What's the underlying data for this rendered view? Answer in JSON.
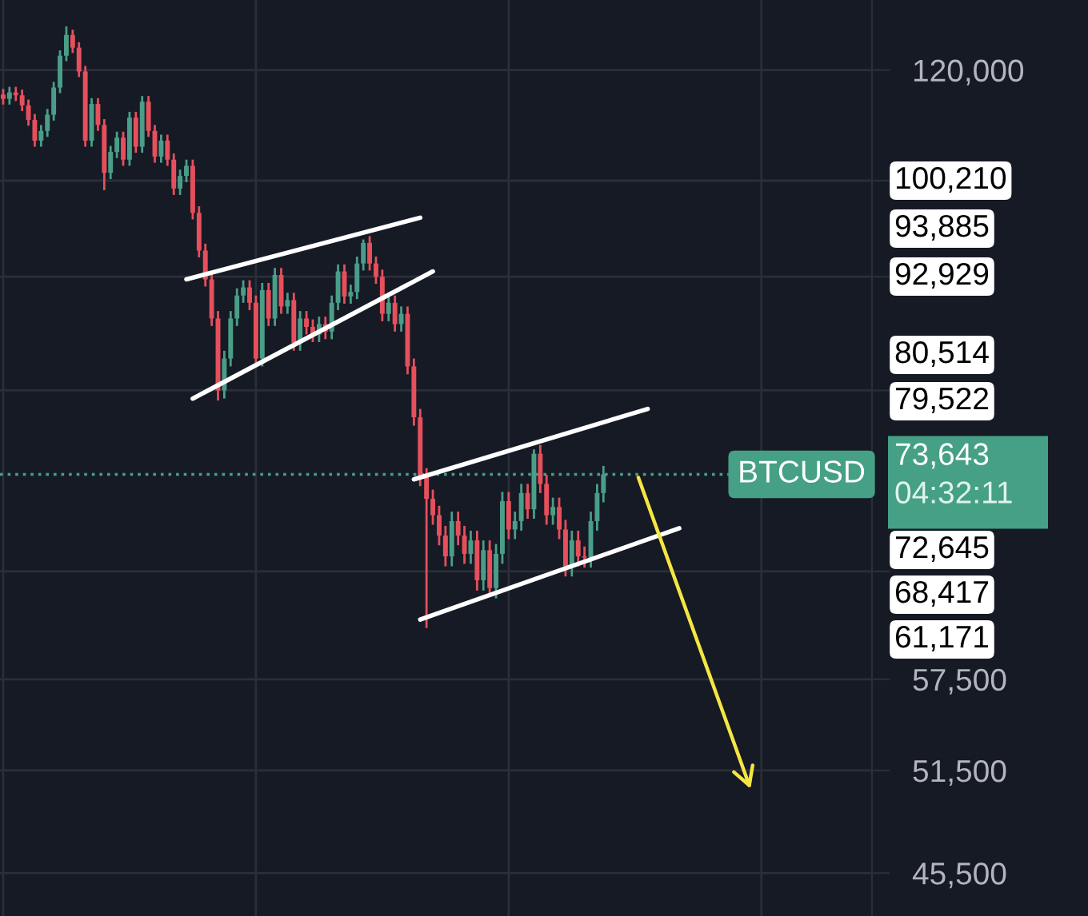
{
  "chart_data": {
    "type": "candlestick",
    "categories": [
      null,
      null,
      null,
      null,
      null,
      null,
      null,
      null,
      null,
      null,
      null,
      null,
      null,
      null,
      null,
      null,
      null,
      null,
      null,
      null,
      null,
      null,
      null,
      null,
      null,
      null,
      null,
      null,
      null,
      null,
      null,
      null,
      null,
      null,
      null,
      null,
      null,
      null,
      null,
      null,
      null,
      null,
      null,
      null,
      null,
      null,
      null,
      null,
      null,
      null,
      null,
      null,
      null,
      null,
      null,
      null,
      null,
      null,
      null,
      null,
      null,
      null,
      null,
      null,
      null,
      null,
      null,
      null,
      null,
      null,
      null,
      null,
      null,
      null,
      null,
      null,
      null,
      null,
      null,
      null,
      null,
      null,
      null,
      null,
      null,
      null,
      null,
      null,
      null,
      null,
      null,
      null,
      null,
      null,
      null,
      null,
      null,
      null,
      null,
      null,
      null,
      null,
      null,
      null,
      null,
      null,
      null,
      null,
      null,
      null,
      null,
      null,
      null,
      null,
      null,
      null,
      null,
      null,
      null,
      null,
      null,
      null,
      null,
      null,
      null,
      null,
      null,
      null,
      null,
      null,
      null,
      null,
      null,
      null,
      null,
      null,
      null,
      null
    ],
    "ohlc": [
      [
        116500,
        117300,
        115100,
        115900
      ],
      [
        115900,
        117600,
        115100,
        116800
      ],
      [
        116800,
        117600,
        115600,
        116400
      ],
      [
        116400,
        117200,
        114200,
        115000
      ],
      [
        115000,
        115800,
        112200,
        113000
      ],
      [
        113000,
        113800,
        109400,
        110200
      ],
      [
        110200,
        112300,
        109400,
        111500
      ],
      [
        111500,
        114500,
        110700,
        113700
      ],
      [
        113700,
        118300,
        112900,
        117500
      ],
      [
        117500,
        122900,
        116700,
        122100
      ],
      [
        122100,
        126500,
        121300,
        125200
      ],
      [
        125200,
        126000,
        122500,
        123300
      ],
      [
        123300,
        124100,
        119000,
        119800
      ],
      [
        119800,
        120600,
        109400,
        110200
      ],
      [
        110200,
        116000,
        109400,
        115200
      ],
      [
        115200,
        116000,
        111500,
        112300
      ],
      [
        112300,
        113100,
        103800,
        106000
      ],
      [
        106000,
        109500,
        105200,
        108700
      ],
      [
        108700,
        111400,
        107900,
        110600
      ],
      [
        110600,
        111400,
        106900,
        107700
      ],
      [
        107700,
        114100,
        106900,
        113300
      ],
      [
        113300,
        114100,
        108600,
        109400
      ],
      [
        109400,
        116300,
        108600,
        115500
      ],
      [
        115500,
        116300,
        110700,
        111500
      ],
      [
        111500,
        112300,
        107300,
        108100
      ],
      [
        108100,
        111000,
        107300,
        110200
      ],
      [
        110200,
        111000,
        106900,
        107700
      ],
      [
        107700,
        108500,
        103200,
        104000
      ],
      [
        104000,
        106400,
        103200,
        105600
      ],
      [
        105600,
        107700,
        104800,
        106900
      ],
      [
        106900,
        107700,
        100200,
        101000
      ],
      [
        101000,
        101800,
        95700,
        96500
      ],
      [
        96500,
        97300,
        92400,
        93200
      ],
      [
        93200,
        94000,
        88100,
        88900
      ],
      [
        88900,
        89700,
        80514,
        81500
      ],
      [
        81500,
        85500,
        80700,
        84700
      ],
      [
        84700,
        89700,
        83900,
        88900
      ],
      [
        88900,
        92200,
        88100,
        91400
      ],
      [
        91400,
        93100,
        90600,
        92300
      ],
      [
        92300,
        93100,
        89800,
        90600
      ],
      [
        90600,
        91400,
        83900,
        84700
      ],
      [
        84700,
        92800,
        83900,
        92000
      ],
      [
        92000,
        92800,
        88100,
        88900
      ],
      [
        88900,
        94500,
        88100,
        93700
      ],
      [
        93700,
        94500,
        89400,
        90200
      ],
      [
        90200,
        91700,
        89400,
        90900
      ],
      [
        90900,
        91700,
        85500,
        86300
      ],
      [
        86300,
        89700,
        85500,
        88900
      ],
      [
        88900,
        89700,
        87200,
        88000
      ],
      [
        88000,
        88800,
        86400,
        87200
      ],
      [
        87200,
        89100,
        86400,
        88300
      ],
      [
        88300,
        89100,
        86700,
        87500
      ],
      [
        87500,
        91400,
        86700,
        90600
      ],
      [
        90600,
        94900,
        89800,
        94100
      ],
      [
        94100,
        94900,
        90500,
        91300
      ],
      [
        91300,
        92600,
        90500,
        91800
      ],
      [
        91800,
        95800,
        91000,
        95000
      ],
      [
        95000,
        97800,
        94200,
        97400
      ],
      [
        97400,
        98200,
        94200,
        95000
      ],
      [
        95000,
        95800,
        92700,
        93500
      ],
      [
        93500,
        94300,
        88600,
        89400
      ],
      [
        89400,
        91400,
        88600,
        90600
      ],
      [
        90600,
        91400,
        87500,
        88300
      ],
      [
        88300,
        90200,
        87500,
        89400
      ],
      [
        89400,
        90200,
        83100,
        83900
      ],
      [
        83900,
        84700,
        78100,
        78900
      ],
      [
        78900,
        79700,
        72600,
        73400
      ],
      [
        73400,
        74200,
        61171,
        71500
      ],
      [
        71500,
        72300,
        69300,
        70100
      ],
      [
        70100,
        70900,
        67600,
        68400
      ],
      [
        68400,
        69200,
        65900,
        66700
      ],
      [
        66700,
        70400,
        65900,
        69600
      ],
      [
        69600,
        70400,
        67600,
        68400
      ],
      [
        68400,
        69200,
        66100,
        66900
      ],
      [
        66900,
        68800,
        66100,
        68000
      ],
      [
        68000,
        68800,
        64000,
        64800
      ],
      [
        64800,
        68000,
        64000,
        67200
      ],
      [
        67200,
        68000,
        63800,
        64200
      ],
      [
        64200,
        67700,
        63400,
        66900
      ],
      [
        66900,
        72100,
        66100,
        71300
      ],
      [
        71300,
        72100,
        68100,
        68900
      ],
      [
        68900,
        70400,
        68100,
        69600
      ],
      [
        69600,
        72800,
        68800,
        72000
      ],
      [
        72000,
        72800,
        69800,
        70600
      ],
      [
        70600,
        75900,
        69800,
        75500
      ],
      [
        75500,
        76300,
        72000,
        72800
      ],
      [
        72800,
        73600,
        69300,
        70100
      ],
      [
        70100,
        71600,
        69300,
        70800
      ],
      [
        70800,
        71600,
        68100,
        68900
      ],
      [
        68900,
        69700,
        65100,
        65900
      ],
      [
        65900,
        68800,
        65100,
        68000
      ],
      [
        68000,
        68800,
        65900,
        66700
      ],
      [
        66700,
        67500,
        65800,
        66600
      ],
      [
        66600,
        70400,
        65800,
        69600
      ],
      [
        69600,
        72800,
        68800,
        72000
      ],
      [
        72000,
        74400,
        71200,
        73643
      ],
      null,
      null,
      null,
      null,
      null,
      null,
      null,
      null,
      null,
      null,
      null,
      null,
      null,
      null,
      null,
      null,
      null,
      null,
      null,
      null,
      null,
      null,
      null,
      null,
      null,
      null,
      null,
      null,
      null,
      null,
      null,
      null,
      null,
      null,
      null,
      null,
      null,
      null,
      null,
      null,
      null,
      null
    ],
    "series": [
      {
        "type": "line",
        "color": "#ffffff",
        "values": [
          null,
          null,
          null,
          null,
          null,
          null,
          null,
          null,
          null,
          null,
          null,
          null,
          null,
          null,
          null,
          null,
          null,
          null,
          null,
          null,
          null,
          null,
          null,
          null,
          null,
          null,
          null,
          null,
          null,
          93200,
          null,
          null,
          null,
          null,
          null,
          null,
          null,
          null,
          null,
          null,
          null,
          null,
          null,
          null,
          null,
          null,
          null,
          null,
          null,
          null,
          null,
          null,
          null,
          null,
          null,
          null,
          null,
          null,
          null,
          null,
          null,
          null,
          null,
          null,
          null,
          null,
          100400,
          null,
          null,
          null,
          null,
          null,
          null,
          null,
          null,
          null,
          null,
          null,
          null,
          null,
          null,
          null,
          null,
          null,
          null,
          null,
          null,
          null,
          null,
          null,
          null,
          null,
          null,
          null,
          null,
          null,
          null,
          null,
          null,
          null,
          null,
          null,
          null,
          null,
          null,
          null,
          null,
          null,
          null,
          null,
          null,
          null,
          null,
          null,
          null,
          null,
          null,
          null,
          null,
          null,
          null,
          null,
          null,
          null,
          null,
          null,
          null,
          null,
          null,
          null,
          null,
          null,
          null,
          null,
          null,
          null,
          null,
          null
        ]
      },
      {
        "type": "line",
        "color": "#ffffff",
        "values": [
          null,
          null,
          null,
          null,
          null,
          null,
          null,
          null,
          null,
          null,
          null,
          null,
          null,
          null,
          null,
          null,
          null,
          null,
          null,
          null,
          null,
          null,
          null,
          null,
          null,
          null,
          null,
          null,
          null,
          null,
          80700,
          null,
          null,
          null,
          null,
          null,
          null,
          null,
          null,
          null,
          null,
          null,
          null,
          null,
          null,
          null,
          null,
          null,
          null,
          null,
          null,
          null,
          null,
          null,
          null,
          null,
          null,
          null,
          null,
          null,
          null,
          null,
          null,
          null,
          null,
          null,
          null,
          null,
          94100,
          null,
          null,
          null,
          null,
          null,
          null,
          null,
          null,
          null,
          null,
          null,
          null,
          null,
          null,
          null,
          null,
          null,
          null,
          null,
          null,
          null,
          null,
          null,
          null,
          null,
          null,
          null,
          null,
          null,
          null,
          null,
          null,
          null,
          null,
          null,
          null,
          null,
          null,
          null,
          null,
          null,
          null,
          null,
          null,
          null,
          null,
          null,
          null,
          null,
          null,
          null,
          null,
          null,
          null,
          null,
          null,
          null,
          null,
          null,
          null,
          null,
          null,
          null,
          null,
          null,
          null,
          null,
          null,
          null
        ]
      },
      {
        "type": "line",
        "color": "#ffffff",
        "values": [
          null,
          null,
          null,
          null,
          null,
          null,
          null,
          null,
          null,
          null,
          null,
          null,
          null,
          null,
          null,
          null,
          null,
          null,
          null,
          null,
          null,
          null,
          null,
          null,
          null,
          null,
          null,
          null,
          null,
          null,
          null,
          null,
          null,
          null,
          null,
          null,
          null,
          null,
          null,
          null,
          null,
          null,
          null,
          null,
          null,
          null,
          null,
          null,
          null,
          null,
          null,
          null,
          null,
          null,
          null,
          null,
          null,
          null,
          null,
          null,
          null,
          null,
          null,
          null,
          null,
          73200,
          null,
          null,
          null,
          null,
          null,
          null,
          null,
          null,
          null,
          null,
          null,
          null,
          null,
          null,
          null,
          null,
          null,
          null,
          null,
          null,
          null,
          null,
          null,
          null,
          null,
          null,
          null,
          null,
          null,
          null,
          null,
          null,
          null,
          null,
          null,
          null,
          79700,
          null,
          null,
          null,
          null,
          null,
          null,
          null,
          null,
          null,
          null,
          null,
          null,
          null,
          null,
          null,
          null,
          null,
          null,
          null,
          null,
          null,
          null,
          null,
          null,
          null,
          null,
          null,
          null,
          null,
          null,
          null,
          null,
          null,
          null,
          null
        ]
      },
      {
        "type": "line",
        "color": "#ffffff",
        "values": [
          null,
          null,
          null,
          null,
          null,
          null,
          null,
          null,
          null,
          null,
          null,
          null,
          null,
          null,
          null,
          null,
          null,
          null,
          null,
          null,
          null,
          null,
          null,
          null,
          null,
          null,
          null,
          null,
          null,
          null,
          null,
          null,
          null,
          null,
          null,
          null,
          null,
          null,
          null,
          null,
          null,
          null,
          null,
          null,
          null,
          null,
          null,
          null,
          null,
          null,
          null,
          null,
          null,
          null,
          null,
          null,
          null,
          null,
          null,
          null,
          null,
          null,
          null,
          null,
          null,
          null,
          61800,
          null,
          null,
          null,
          null,
          null,
          null,
          null,
          null,
          null,
          null,
          null,
          null,
          null,
          null,
          null,
          null,
          null,
          null,
          null,
          null,
          null,
          null,
          null,
          null,
          null,
          null,
          null,
          null,
          null,
          null,
          null,
          null,
          null,
          null,
          null,
          null,
          null,
          null,
          null,
          null,
          69000,
          null,
          null,
          null,
          null,
          null,
          null,
          null,
          null,
          null,
          null,
          null,
          null,
          null,
          null,
          null,
          null,
          null,
          null,
          null,
          null,
          null,
          null,
          null,
          null,
          null,
          null,
          null,
          null,
          null,
          null
        ]
      }
    ],
    "log": true,
    "ylim": [
      43200,
      130600
    ],
    "yticks": [
      {
        "value": 45500,
        "label": "45,500"
      },
      {
        "value": 51500,
        "label": "51,500"
      },
      {
        "value": 57500,
        "label": "57,500"
      },
      {
        "value": 65500,
        "label": null
      },
      {
        "value": 81500,
        "label": null
      },
      {
        "value": 93500,
        "label": null
      },
      {
        "value": 105000,
        "label": null
      },
      {
        "value": 120000,
        "label": "120,000"
      }
    ],
    "tick_labels": "y",
    "grid": true,
    "ref_lines": [
      {
        "axis": "y",
        "value": 73643,
        "label": "73,643",
        "color": "#45a085",
        "line_style": "dotted"
      }
    ],
    "annotations": [
      "BTCUSD",
      "04:32:11",
      "100,210",
      "93,885",
      "92,929",
      "80,514",
      "79,522",
      "72,645",
      "68,417",
      "61,171"
    ]
  }
}
